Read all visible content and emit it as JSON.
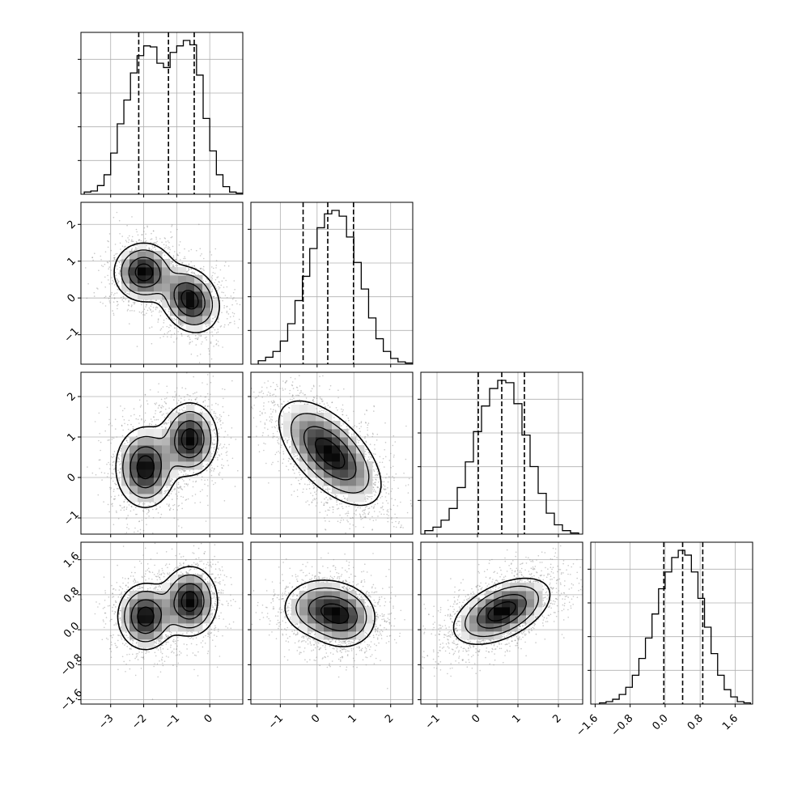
{
  "chart_data": {
    "type": "corner",
    "parameters": 4,
    "grid": true,
    "axes": [
      {
        "range": [
          -3.9,
          1.0
        ],
        "ticks": [
          -3,
          -2,
          -1,
          0
        ],
        "tick_labels": [
          "−3",
          "−2",
          "−1",
          "0"
        ]
      },
      {
        "range": [
          -1.8,
          2.6
        ],
        "ticks": [
          -1,
          0,
          1,
          2
        ],
        "tick_labels": [
          "−1",
          "0",
          "1",
          "2"
        ]
      },
      {
        "range": [
          -1.4,
          2.6
        ],
        "ticks": [
          -1,
          0,
          1,
          2
        ],
        "tick_labels": [
          "−1",
          "0",
          "1",
          "2"
        ]
      },
      {
        "range": [
          -1.7,
          2.0
        ],
        "ticks": [
          -1.6,
          -0.8,
          0.0,
          0.8,
          1.6
        ],
        "tick_labels": [
          "−1.6",
          "−0.8",
          "0.0",
          "0.8",
          "1.6"
        ]
      }
    ],
    "histograms": [
      {
        "param": 0,
        "bins": [
          -3.8,
          -3.6,
          -3.4,
          -3.2,
          -3.0,
          -2.8,
          -2.6,
          -2.4,
          -2.2,
          -2.0,
          -1.8,
          -1.6,
          -1.4,
          -1.2,
          -1.0,
          -0.8,
          -0.6,
          -0.4,
          -0.2,
          0.0,
          0.2,
          0.4,
          0.6,
          0.8
        ],
        "counts": [
          2,
          3,
          8,
          18,
          38,
          65,
          87,
          112,
          128,
          137,
          136,
          121,
          117,
          131,
          137,
          142,
          138,
          110,
          70,
          40,
          18,
          7,
          2,
          1
        ],
        "quantiles": [
          -2.15,
          -1.25,
          -0.47
        ]
      },
      {
        "param": 1,
        "bins": [
          -1.6,
          -1.4,
          -1.2,
          -1.0,
          -0.8,
          -0.6,
          -0.4,
          -0.2,
          0.0,
          0.2,
          0.4,
          0.6,
          0.8,
          1.0,
          1.2,
          1.4,
          1.6,
          1.8,
          2.0,
          2.2,
          2.4
        ],
        "counts": [
          3,
          6,
          11,
          20,
          35,
          55,
          76,
          100,
          118,
          130,
          133,
          128,
          110,
          88,
          65,
          40,
          22,
          11,
          5,
          2,
          1
        ],
        "quantiles": [
          -0.38,
          0.29,
          0.99
        ]
      },
      {
        "param": 2,
        "bins": [
          -1.3,
          -1.1,
          -0.9,
          -0.7,
          -0.5,
          -0.3,
          -0.1,
          0.1,
          0.3,
          0.5,
          0.7,
          0.9,
          1.1,
          1.3,
          1.5,
          1.7,
          1.9,
          2.1,
          2.3
        ],
        "counts": [
          3,
          6,
          12,
          22,
          40,
          62,
          88,
          110,
          125,
          132,
          130,
          112,
          85,
          58,
          35,
          18,
          8,
          3,
          1
        ],
        "quantiles": [
          0.02,
          0.6,
          1.16
        ]
      },
      {
        "param": 3,
        "bins": [
          -1.5,
          -1.35,
          -1.2,
          -1.05,
          -0.9,
          -0.75,
          -0.6,
          -0.45,
          -0.3,
          -0.15,
          0.0,
          0.15,
          0.3,
          0.45,
          0.6,
          0.75,
          0.9,
          1.05,
          1.2,
          1.35,
          1.5,
          1.65,
          1.8
        ],
        "counts": [
          1,
          2,
          4,
          8,
          14,
          24,
          38,
          55,
          75,
          96,
          110,
          122,
          128,
          124,
          110,
          88,
          64,
          42,
          24,
          12,
          6,
          2,
          1
        ],
        "quantiles": [
          -0.03,
          0.4,
          0.86
        ]
      }
    ],
    "pairs": [
      {
        "x": 0,
        "y": 1,
        "modes": [
          [
            -2.0,
            0.7,
            0.45,
            0.4,
            0.0
          ],
          [
            -0.6,
            -0.05,
            0.45,
            0.45,
            -0.2
          ]
        ]
      },
      {
        "x": 0,
        "y": 2,
        "modes": [
          [
            -1.95,
            0.25,
            0.45,
            0.5,
            0.0
          ],
          [
            -0.6,
            0.95,
            0.42,
            0.45,
            0.0
          ]
        ]
      },
      {
        "x": 1,
        "y": 2,
        "modes": [
          [
            0.35,
            0.6,
            0.7,
            0.65,
            -0.6
          ]
        ]
      },
      {
        "x": 0,
        "y": 3,
        "modes": [
          [
            -1.95,
            0.3,
            0.42,
            0.38,
            0.0
          ],
          [
            -0.6,
            0.65,
            0.42,
            0.4,
            0.0
          ]
        ]
      },
      {
        "x": 1,
        "y": 3,
        "modes": [
          [
            0.1,
            0.5,
            0.55,
            0.35,
            0.0
          ],
          [
            0.75,
            0.25,
            0.45,
            0.35,
            0.0
          ]
        ]
      },
      {
        "x": 2,
        "y": 3,
        "modes": [
          [
            0.6,
            0.42,
            0.6,
            0.38,
            0.5
          ]
        ]
      }
    ]
  }
}
